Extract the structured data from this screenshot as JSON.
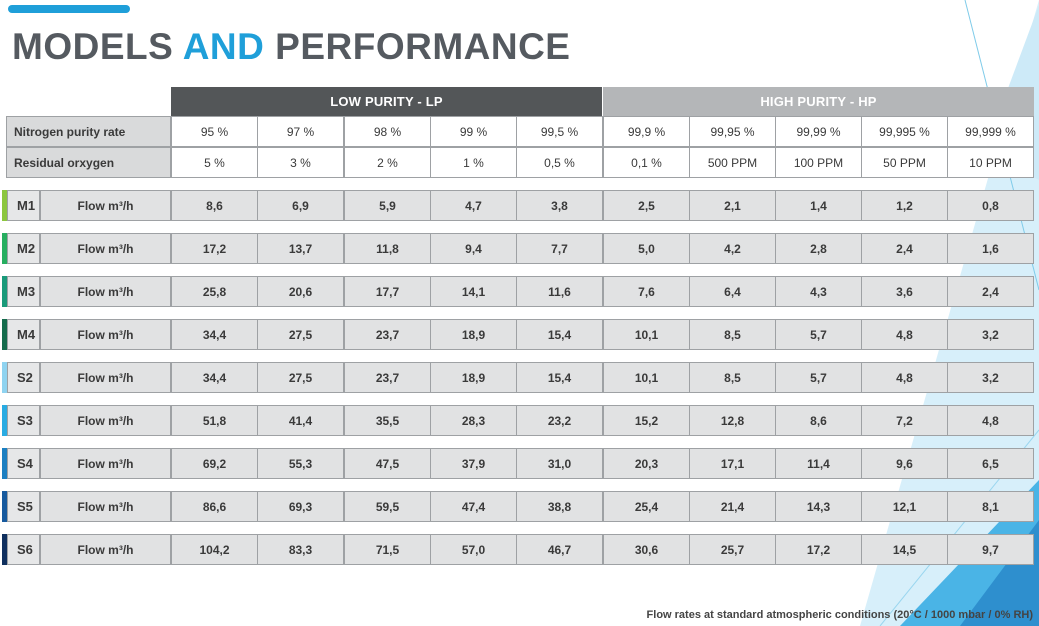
{
  "title": {
    "part1": "MODELS ",
    "accent": "AND",
    "part2": " PERFORMANCE"
  },
  "headers": {
    "low_purity": "LOW PURITY - LP",
    "high_purity": "HIGH PURITY - HP"
  },
  "purity_row": {
    "label": "Nitrogen purity rate",
    "values": [
      "95 %",
      "97 %",
      "98 %",
      "99 %",
      "99,5 %",
      "99,9 %",
      "99,95 %",
      "99,99 %",
      "99,995 %",
      "99,999 %"
    ]
  },
  "oxygen_row": {
    "label": "Residual orxygen",
    "values": [
      "5 %",
      "3 %",
      "2 %",
      "1 %",
      "0,5 %",
      "0,1 %",
      "500 PPM",
      "100 PPM",
      "50 PPM",
      "10 PPM"
    ]
  },
  "models": [
    {
      "name": "M1",
      "color": "#8cc63f",
      "flow_label": "Flow m³/h",
      "values": [
        "8,6",
        "6,9",
        "5,9",
        "4,7",
        "3,8",
        "2,5",
        "2,1",
        "1,4",
        "1,2",
        "0,8"
      ]
    },
    {
      "name": "M2",
      "color": "#27ae60",
      "flow_label": "Flow m³/h",
      "values": [
        "17,2",
        "13,7",
        "11,8",
        "9,4",
        "7,7",
        "5,0",
        "4,2",
        "2,8",
        "2,4",
        "1,6"
      ]
    },
    {
      "name": "M3",
      "color": "#1a9a7a",
      "flow_label": "Flow m³/h",
      "values": [
        "25,8",
        "20,6",
        "17,7",
        "14,1",
        "11,6",
        "7,6",
        "6,4",
        "4,3",
        "3,6",
        "2,4"
      ]
    },
    {
      "name": "M4",
      "color": "#146b4c",
      "flow_label": "Flow m³/h",
      "values": [
        "34,4",
        "27,5",
        "23,7",
        "18,9",
        "15,4",
        "10,1",
        "8,5",
        "5,7",
        "4,8",
        "3,2"
      ]
    },
    {
      "name": "S2",
      "color": "#8fd3f0",
      "flow_label": "Flow m³/h",
      "values": [
        "34,4",
        "27,5",
        "23,7",
        "18,9",
        "15,4",
        "10,1",
        "8,5",
        "5,7",
        "4,8",
        "3,2"
      ]
    },
    {
      "name": "S3",
      "color": "#29abe2",
      "flow_label": "Flow m³/h",
      "values": [
        "51,8",
        "41,4",
        "35,5",
        "28,3",
        "23,2",
        "15,2",
        "12,8",
        "8,6",
        "7,2",
        "4,8"
      ]
    },
    {
      "name": "S4",
      "color": "#1c7fc1",
      "flow_label": "Flow m³/h",
      "values": [
        "69,2",
        "55,3",
        "47,5",
        "37,9",
        "31,0",
        "20,3",
        "17,1",
        "11,4",
        "9,6",
        "6,5"
      ]
    },
    {
      "name": "S5",
      "color": "#175a9e",
      "flow_label": "Flow m³/h",
      "values": [
        "86,6",
        "69,3",
        "59,5",
        "47,4",
        "38,8",
        "25,4",
        "21,4",
        "14,3",
        "12,1",
        "8,1"
      ]
    },
    {
      "name": "S6",
      "color": "#0f2f5e",
      "flow_label": "Flow m³/h",
      "values": [
        "104,2",
        "83,3",
        "71,5",
        "57,0",
        "46,7",
        "30,6",
        "25,7",
        "17,2",
        "14,5",
        "9,7"
      ]
    }
  ],
  "footnote": "Flow rates at standard atmospheric conditions (20°C / 1000 mbar / 0% RH)",
  "colors": {
    "accent": "#1f9fd9",
    "lp_header": "#535658",
    "hp_header": "#b4b6b8"
  }
}
